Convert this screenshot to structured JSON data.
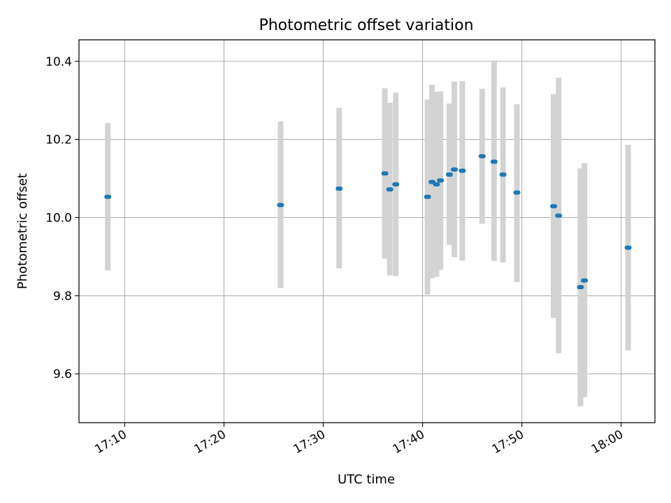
{
  "chart_data": {
    "type": "scatter",
    "title": "Photometric offset variation",
    "xlabel": "UTC time",
    "ylabel": "Photometric offset",
    "x_tick_labels": [
      "17:10",
      "17:20",
      "17:30",
      "17:40",
      "17:50",
      "18:00"
    ],
    "x_ticks_minutes": [
      1030,
      1040,
      1050,
      1060,
      1070,
      1080
    ],
    "xlim_minutes": [
      1025.4,
      1083.4
    ],
    "x_unit": "minutes since 00:00 UTC",
    "ylim": [
      9.475,
      10.455
    ],
    "y_ticks": [
      9.6,
      9.8,
      10.0,
      10.2,
      10.4
    ],
    "y_tick_labels": [
      "9.6",
      "9.8",
      "10.0",
      "10.2",
      "10.4"
    ],
    "grid": true,
    "colors": {
      "points": "#1f77b4",
      "error_bars": "#d3d3d3",
      "grid": "#b0b0b0"
    },
    "series": [
      {
        "points": [
          {
            "t": "17:08.3",
            "x": 1028.3,
            "y": 10.053,
            "ylow": 9.865,
            "yhigh": 10.242
          },
          {
            "t": "17:25.7",
            "x": 1045.7,
            "y": 10.032,
            "ylow": 9.82,
            "yhigh": 10.246
          },
          {
            "t": "17:31.6",
            "x": 1051.6,
            "y": 10.074,
            "ylow": 9.87,
            "yhigh": 10.281
          },
          {
            "t": "17:36.2",
            "x": 1056.2,
            "y": 10.113,
            "ylow": 9.895,
            "yhigh": 10.331
          },
          {
            "t": "17:36.7",
            "x": 1056.7,
            "y": 10.072,
            "ylow": 9.852,
            "yhigh": 10.294
          },
          {
            "t": "17:37.3",
            "x": 1057.3,
            "y": 10.085,
            "ylow": 9.85,
            "yhigh": 10.32
          },
          {
            "t": "17:40.5",
            "x": 1060.5,
            "y": 10.053,
            "ylow": 9.803,
            "yhigh": 10.302
          },
          {
            "t": "17:40.9",
            "x": 1060.95,
            "y": 10.091,
            "ylow": 9.845,
            "yhigh": 10.34
          },
          {
            "t": "17:41.4",
            "x": 1061.4,
            "y": 10.085,
            "ylow": 9.848,
            "yhigh": 10.322
          },
          {
            "t": "17:41.8",
            "x": 1061.8,
            "y": 10.095,
            "ylow": 9.866,
            "yhigh": 10.323
          },
          {
            "t": "17:42.7",
            "x": 1062.7,
            "y": 10.11,
            "ylow": 9.93,
            "yhigh": 10.292
          },
          {
            "t": "17:43.2",
            "x": 1063.2,
            "y": 10.123,
            "ylow": 9.899,
            "yhigh": 10.348
          },
          {
            "t": "17:44.0",
            "x": 1064.0,
            "y": 10.12,
            "ylow": 9.89,
            "yhigh": 10.349
          },
          {
            "t": "17:46.0",
            "x": 1066.0,
            "y": 10.157,
            "ylow": 9.984,
            "yhigh": 10.33
          },
          {
            "t": "17:47.2",
            "x": 1067.2,
            "y": 10.143,
            "ylow": 9.889,
            "yhigh": 10.399
          },
          {
            "t": "17:48.1",
            "x": 1068.1,
            "y": 10.11,
            "ylow": 9.885,
            "yhigh": 10.333
          },
          {
            "t": "17:49.5",
            "x": 1069.5,
            "y": 10.064,
            "ylow": 9.835,
            "yhigh": 10.29
          },
          {
            "t": "17:53.2",
            "x": 1073.2,
            "y": 10.029,
            "ylow": 9.743,
            "yhigh": 10.316
          },
          {
            "t": "17:53.7",
            "x": 1073.7,
            "y": 10.005,
            "ylow": 9.653,
            "yhigh": 10.358
          },
          {
            "t": "17:55.9",
            "x": 1075.9,
            "y": 9.822,
            "ylow": 9.517,
            "yhigh": 10.126
          },
          {
            "t": "17:56.3",
            "x": 1076.3,
            "y": 9.839,
            "ylow": 9.54,
            "yhigh": 10.139
          },
          {
            "t": "18:00.7",
            "x": 1080.7,
            "y": 9.923,
            "ylow": 9.66,
            "yhigh": 10.186
          }
        ]
      }
    ]
  }
}
